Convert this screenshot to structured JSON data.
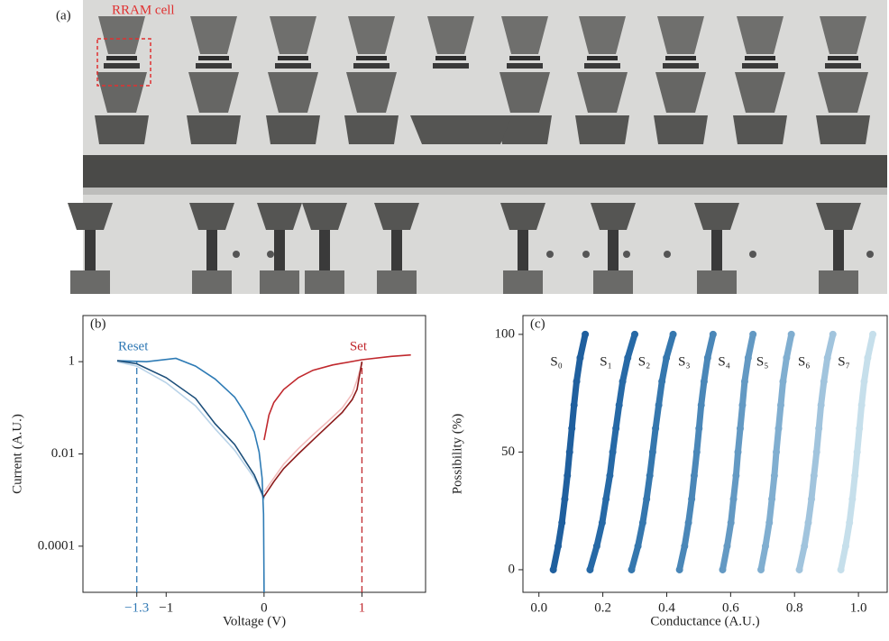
{
  "image": {
    "label": "(a)",
    "annotation": "RRAM cell"
  },
  "chart_data": [
    {
      "type": "line",
      "label": "(b)",
      "xlabel": "Voltage (V)",
      "ylabel": "Current (A.U.)",
      "log_y": true,
      "xlim": [
        -1.85,
        1.65
      ],
      "ylim": [
        1e-05,
        10
      ],
      "xticks": [
        {
          "value": -1.3,
          "label": "−1.3",
          "color": "#2f78b4",
          "guide_to": 1,
          "annotation": "Reset"
        },
        {
          "value": -1,
          "label": "−1"
        },
        0,
        {
          "value": 1,
          "label": "1",
          "color": "#c0282d",
          "guide_to": 1,
          "annotation": "Set"
        }
      ],
      "yticks": [
        1,
        0.01,
        0.0001
      ],
      "series": [
        {
          "color": "#b9d3e8",
          "x": [
            -1.5,
            -1.3,
            -1.0,
            -0.7,
            -0.5,
            -0.3,
            -0.2,
            -0.1,
            -0.05,
            0
          ],
          "values": [
            1.0,
            0.8,
            0.35,
            0.11,
            0.035,
            0.012,
            0.006,
            0.003,
            0.0018,
            0.001
          ]
        },
        {
          "color": "#f2bcbc",
          "x": [
            0,
            0.1,
            0.2,
            0.35,
            0.5,
            0.65,
            0.8,
            0.9,
            0.95,
            1.0
          ],
          "values": [
            0.0015,
            0.003,
            0.006,
            0.013,
            0.026,
            0.05,
            0.1,
            0.2,
            0.4,
            0.9
          ]
        },
        {
          "color": "#2e7bb5",
          "x": [
            -1.5,
            -1.2,
            -0.9,
            -0.7,
            -0.5,
            -0.3,
            -0.2,
            -0.1,
            -0.05,
            -0.02,
            -0.005,
            0
          ],
          "values": [
            1.05,
            1.0,
            1.18,
            0.8,
            0.42,
            0.17,
            0.08,
            0.03,
            0.011,
            0.003,
            0.0005,
            1e-05
          ]
        },
        {
          "color": "#1d4f7a",
          "x": [
            -1.5,
            -1.3,
            -1.0,
            -0.7,
            -0.5,
            -0.3,
            -0.2,
            -0.1,
            -0.05,
            0
          ],
          "values": [
            1.05,
            0.9,
            0.45,
            0.16,
            0.045,
            0.016,
            0.0075,
            0.0035,
            0.002,
            0.0011
          ]
        },
        {
          "color": "#c0282d",
          "x": [
            0,
            0.05,
            0.1,
            0.2,
            0.35,
            0.5,
            0.7,
            1.0,
            1.3,
            1.5
          ],
          "values": [
            0.02,
            0.07,
            0.13,
            0.25,
            0.45,
            0.65,
            0.85,
            1.1,
            1.3,
            1.4
          ]
        },
        {
          "color": "#8b1a1a",
          "x": [
            0,
            0.1,
            0.2,
            0.35,
            0.5,
            0.65,
            0.8,
            0.9,
            0.95,
            1.0
          ],
          "values": [
            0.0012,
            0.0025,
            0.0048,
            0.01,
            0.02,
            0.04,
            0.08,
            0.15,
            0.25,
            1.0
          ]
        }
      ]
    },
    {
      "type": "scatter",
      "label": "(c)",
      "xlabel": "Conductance (A.U.)",
      "ylabel": "Possibility (%)",
      "xlim": [
        -0.05,
        1.09
      ],
      "ylim": [
        -9.6,
        108
      ],
      "xticks": [
        {
          "value": 0,
          "label": "0.0"
        },
        0.2,
        0.4,
        0.6,
        0.8,
        {
          "value": 1,
          "label": "1.0"
        }
      ],
      "yticks": [
        0,
        50,
        100
      ],
      "series": [
        {
          "name": "S₀",
          "color": "#1f5f9e",
          "x": [
            0.045,
            0.06,
            0.072,
            0.081,
            0.089,
            0.096,
            0.103,
            0.11,
            0.118,
            0.129,
            0.145
          ],
          "values": [
            0,
            10,
            20,
            30,
            40,
            50,
            60,
            70,
            80,
            90,
            100
          ]
        },
        {
          "name": "S₁",
          "color": "#2669a6",
          "x": [
            0.16,
            0.181,
            0.198,
            0.21,
            0.222,
            0.231,
            0.241,
            0.251,
            0.262,
            0.278,
            0.3
          ],
          "values": [
            0,
            10,
            20,
            30,
            40,
            50,
            60,
            70,
            80,
            90,
            100
          ]
        },
        {
          "name": "S₂",
          "color": "#3577ae",
          "x": [
            0.29,
            0.31,
            0.325,
            0.337,
            0.347,
            0.356,
            0.365,
            0.375,
            0.385,
            0.399,
            0.42
          ],
          "values": [
            0,
            10,
            20,
            30,
            40,
            50,
            60,
            70,
            80,
            90,
            100
          ]
        },
        {
          "name": "S₃",
          "color": "#4a87b8",
          "x": [
            0.44,
            0.456,
            0.468,
            0.478,
            0.486,
            0.494,
            0.501,
            0.508,
            0.517,
            0.528,
            0.545
          ],
          "values": [
            0,
            10,
            20,
            30,
            40,
            50,
            60,
            70,
            80,
            90,
            100
          ]
        },
        {
          "name": "S₄",
          "color": "#6399c3",
          "x": [
            0.575,
            0.589,
            0.601,
            0.609,
            0.617,
            0.623,
            0.63,
            0.637,
            0.644,
            0.655,
            0.67
          ],
          "values": [
            0,
            10,
            20,
            30,
            40,
            50,
            60,
            70,
            80,
            90,
            100
          ]
        },
        {
          "name": "S₅",
          "color": "#80aed0",
          "x": [
            0.695,
            0.709,
            0.721,
            0.729,
            0.737,
            0.743,
            0.75,
            0.757,
            0.764,
            0.775,
            0.79
          ],
          "values": [
            0,
            10,
            20,
            30,
            40,
            50,
            60,
            70,
            80,
            90,
            100
          ]
        },
        {
          "name": "S₆",
          "color": "#a1c4dd",
          "x": [
            0.815,
            0.831,
            0.843,
            0.853,
            0.861,
            0.869,
            0.876,
            0.883,
            0.892,
            0.903,
            0.92
          ],
          "values": [
            0,
            10,
            20,
            30,
            40,
            50,
            60,
            70,
            80,
            90,
            100
          ]
        },
        {
          "name": "S₇",
          "color": "#c6dfeb",
          "x": [
            0.945,
            0.96,
            0.972,
            0.981,
            0.989,
            0.996,
            1.003,
            1.01,
            1.018,
            1.029,
            1.045
          ],
          "values": [
            0,
            10,
            20,
            30,
            40,
            50,
            60,
            70,
            80,
            90,
            100
          ]
        }
      ]
    }
  ]
}
